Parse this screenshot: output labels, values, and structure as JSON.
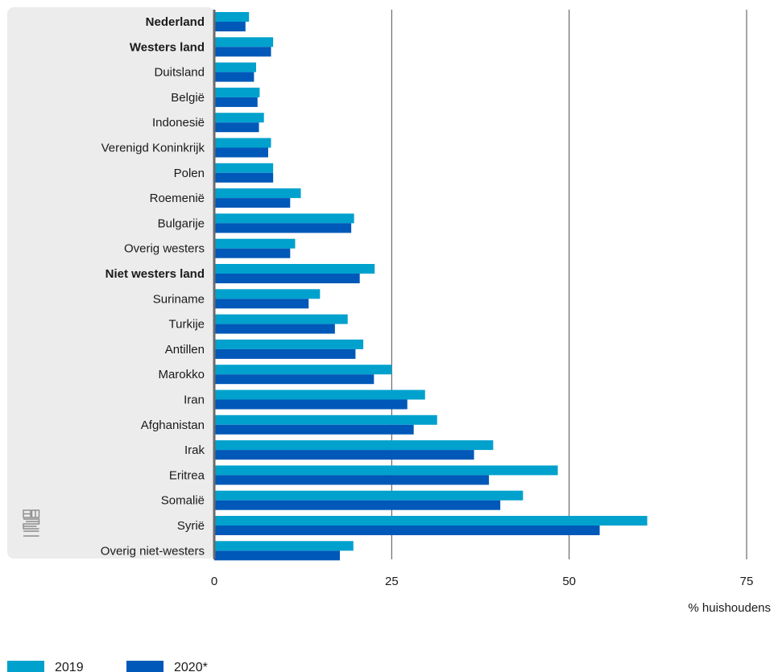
{
  "chart_data": {
    "type": "bar",
    "orientation": "horizontal",
    "categories": [
      "Nederland",
      "Westers land",
      "Duitsland",
      "België",
      "Indonesië",
      "Verenigd Koninkrijk",
      "Polen",
      "Roemenië",
      "Bulgarije",
      "Overig westers",
      "Niet westers land",
      "Suriname",
      "Turkije",
      "Antillen",
      "Marokko",
      "Iran",
      "Afghanistan",
      "Irak",
      "Eritrea",
      "Somalië",
      "Syrië",
      "Overig niet-westers"
    ],
    "bold_categories": [
      "Nederland",
      "Westers land",
      "Niet westers land"
    ],
    "series": [
      {
        "name": "2019",
        "color": "#00a1cd",
        "values": [
          4.9,
          8.3,
          5.9,
          6.4,
          7.0,
          8.0,
          8.3,
          12.2,
          19.7,
          11.4,
          22.6,
          14.9,
          18.8,
          21.0,
          25.0,
          29.7,
          31.4,
          39.3,
          48.4,
          43.5,
          61.0,
          19.6
        ]
      },
      {
        "name": "2020*",
        "color": "#0058b8",
        "values": [
          4.4,
          8.0,
          5.6,
          6.1,
          6.3,
          7.6,
          8.3,
          10.7,
          19.3,
          10.7,
          20.5,
          13.3,
          17.0,
          19.9,
          22.5,
          27.2,
          28.1,
          36.6,
          38.7,
          40.3,
          54.3,
          17.7
        ]
      }
    ],
    "xlim": [
      0,
      75
    ],
    "xticks": [
      "0",
      "25",
      "50",
      "75"
    ],
    "xlabel": "% huishoudens",
    "grid": true,
    "legend_position": "bottom-left"
  },
  "logo": "cbs-logo"
}
